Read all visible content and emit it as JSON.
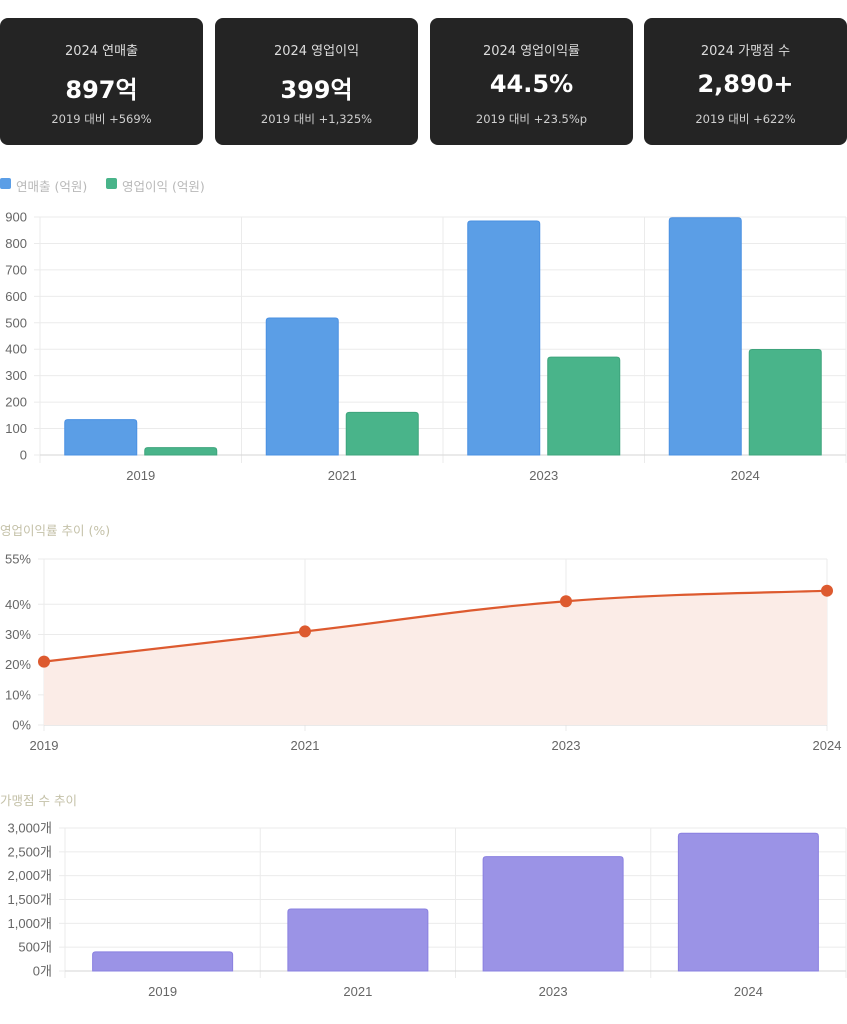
{
  "kpis": [
    {
      "title": "2024 연매출",
      "value": "897억",
      "sub": "2019 대비 +569%"
    },
    {
      "title": "2024 영업이익",
      "value": "399억",
      "sub": "2019 대비 +1,325%"
    },
    {
      "title": "2024 영업이익률",
      "value": "44.5%",
      "sub": "2019 대비 +23.5%p"
    },
    {
      "title": "2024 가맹점 수",
      "value": "2,890+",
      "sub": "2019 대비 +622%"
    }
  ],
  "colors": {
    "revenue": "#5b9ee6",
    "profit": "#49b48a",
    "margin_line": "#dd5a2f",
    "margin_fill": "#fbece7",
    "stores": "#9b93e6",
    "grid": "#ebebeb",
    "axis": "#d6d6d6",
    "card_bg": "#242424"
  },
  "chart_data": [
    {
      "type": "bar",
      "categories": [
        "2019",
        "2021",
        "2023",
        "2024"
      ],
      "series": [
        {
          "name": "연매출 (억원)",
          "values": [
            134,
            518,
            885,
            897
          ]
        },
        {
          "name": "영업이익 (억원)",
          "values": [
            28,
            161,
            370,
            399
          ]
        }
      ],
      "y_ticks": [
        "0",
        "100",
        "200",
        "300",
        "400",
        "500",
        "600",
        "700",
        "800",
        "900"
      ],
      "ylim": [
        0,
        900
      ],
      "grid": true,
      "legend": "top-left"
    },
    {
      "type": "line",
      "title": "영업이익률 추이 (%)",
      "categories": [
        "2019",
        "2021",
        "2023",
        "2024"
      ],
      "values": [
        21,
        31,
        41,
        44.5
      ],
      "y_ticks": [
        {
          "v": 0,
          "label": "0%"
        },
        {
          "v": 10,
          "label": "10%"
        },
        {
          "v": 20,
          "label": "20%"
        },
        {
          "v": 30,
          "label": "30%"
        },
        {
          "v": 40,
          "label": "40%"
        },
        {
          "v": 55,
          "label": "55%"
        }
      ],
      "ylim": [
        0,
        55
      ],
      "grid": true,
      "filled": true
    },
    {
      "type": "bar",
      "title": "가맹점 수 추이",
      "categories": [
        "2019",
        "2021",
        "2023",
        "2024"
      ],
      "values": [
        400,
        1300,
        2400,
        2890
      ],
      "y_ticks": [
        "0개",
        "500개",
        "1,000개",
        "1,500개",
        "2,000개",
        "2,500개",
        "3,000개"
      ],
      "ylim": [
        0,
        3000
      ],
      "grid": true
    }
  ]
}
